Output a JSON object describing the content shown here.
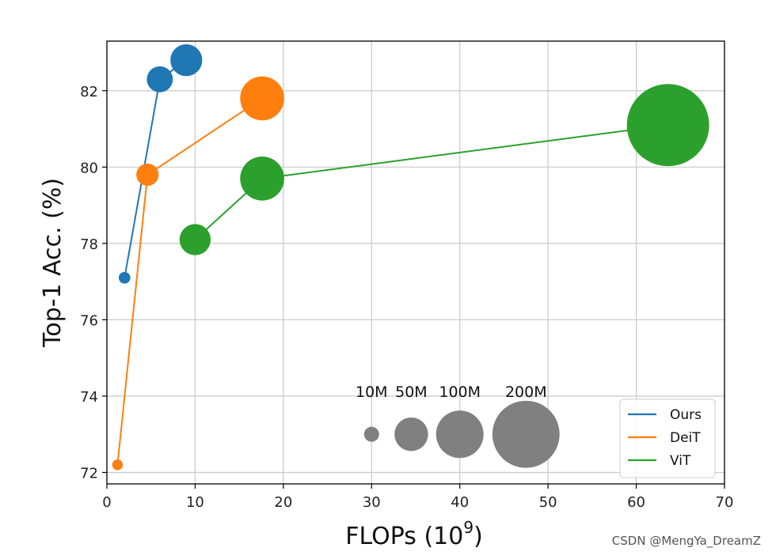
{
  "chart_data": {
    "type": "scatter",
    "title": "",
    "xlabel": "FLOPs (10",
    "xlabel_sup": "9",
    "xlabel_close": ")",
    "ylabel": "Top-1 Acc. (%)",
    "xlim": [
      0,
      70
    ],
    "ylim": [
      71.7,
      83.3
    ],
    "xticks": [
      0,
      10,
      20,
      30,
      40,
      50,
      60,
      70
    ],
    "yticks": [
      72,
      74,
      76,
      78,
      80,
      82
    ],
    "grid": true,
    "legend_position": "lower-right",
    "series": [
      {
        "name": "Ours",
        "color": "#1f77b4",
        "points": [
          {
            "x": 2.0,
            "y": 77.1,
            "params": 6
          },
          {
            "x": 6.0,
            "y": 82.3,
            "params": 30
          },
          {
            "x": 9.0,
            "y": 82.8,
            "params": 45
          }
        ]
      },
      {
        "name": "DeiT",
        "color": "#ff7f0e",
        "points": [
          {
            "x": 1.2,
            "y": 72.2,
            "params": 5
          },
          {
            "x": 4.6,
            "y": 79.8,
            "params": 22
          },
          {
            "x": 17.6,
            "y": 81.8,
            "params": 86
          }
        ]
      },
      {
        "name": "ViT",
        "color": "#2ca02c",
        "points": [
          {
            "x": 10.0,
            "y": 78.1,
            "params": 43
          },
          {
            "x": 17.6,
            "y": 79.7,
            "params": 86
          },
          {
            "x": 63.6,
            "y": 81.1,
            "params": 300
          }
        ]
      }
    ],
    "size_legend": {
      "color": "#808080",
      "y": 73.0,
      "entries": [
        {
          "label": "10M",
          "x": 30.0,
          "params": 10
        },
        {
          "label": "50M",
          "x": 34.5,
          "params": 50
        },
        {
          "label": "100M",
          "x": 40.0,
          "params": 100
        },
        {
          "label": "200M",
          "x": 47.5,
          "params": 200
        }
      ]
    }
  },
  "watermark": "CSDN @MengYa_DreamZ"
}
